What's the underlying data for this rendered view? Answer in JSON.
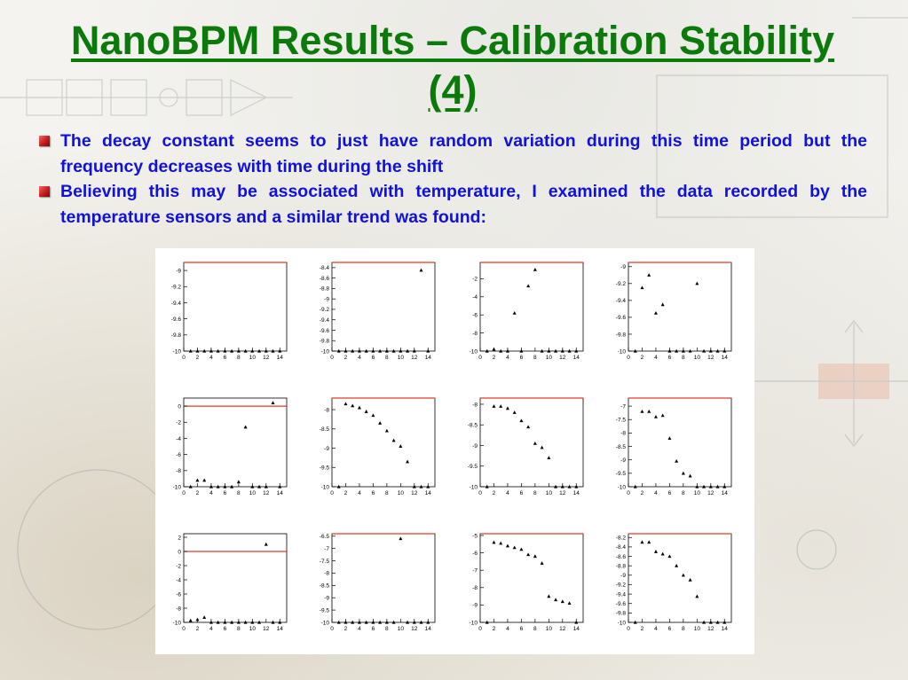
{
  "slide": {
    "title": "NanoBPM Results – Calibration Stability (4)",
    "bullets": [
      "The decay constant seems to just have random variation during this time period but the frequency decreases with time during the shift",
      "Believing this may be associated with temperature, I examined the data recorded by the temperature sensors and a similar trend was found:"
    ]
  },
  "colors": {
    "title": "#0b7a0b",
    "bullet_text": "#1111dd",
    "bullet_marker": "#c81c1c",
    "reference_line": "#e23a2a",
    "marker": "#000000"
  },
  "chart_data": [
    {
      "type": "scatter",
      "x": [
        1,
        2,
        3,
        4,
        5,
        6,
        7,
        8,
        9,
        10,
        11,
        12,
        13,
        14
      ],
      "y": [
        -10,
        -10,
        -10,
        -10,
        -10,
        -10,
        -10,
        -10,
        -10,
        -10,
        -10,
        -10,
        -10,
        -10
      ],
      "xlim": [
        0,
        15
      ],
      "ylim": [
        -10,
        -8.9
      ],
      "xticks": [
        0,
        2,
        4,
        6,
        8,
        10,
        12,
        14
      ],
      "yticks": [
        -9,
        -9.2,
        -9.4,
        -9.6,
        -9.8,
        -10
      ],
      "ref_line": -8.9
    },
    {
      "type": "scatter",
      "x": [
        1,
        2,
        3,
        4,
        5,
        6,
        7,
        8,
        9,
        10,
        11,
        12,
        13,
        14
      ],
      "y": [
        -10,
        -10,
        -10,
        -10,
        -10,
        -10,
        -10,
        -10,
        -10,
        -10,
        -10,
        -10,
        -8.45,
        -10
      ],
      "xlim": [
        0,
        15
      ],
      "ylim": [
        -10,
        -8.3
      ],
      "xticks": [
        0,
        2,
        4,
        6,
        8,
        10,
        12,
        14
      ],
      "yticks": [
        -8.4,
        -8.6,
        -8.8,
        -9,
        -9.2,
        -9.4,
        -9.6,
        -9.8,
        -10
      ],
      "ref_line": -8.3
    },
    {
      "type": "scatter",
      "x": [
        1,
        2,
        3,
        4,
        5,
        6,
        7,
        8,
        9,
        10,
        11,
        12,
        13,
        14
      ],
      "y": [
        -10,
        -9.8,
        -10,
        -10,
        -5.8,
        -10,
        -2.8,
        -1,
        -10,
        -10,
        -10,
        -10,
        -10,
        -10
      ],
      "xlim": [
        0,
        15
      ],
      "ylim": [
        -10,
        -0.2
      ],
      "xticks": [
        0,
        2,
        4,
        6,
        8,
        10,
        12,
        14
      ],
      "yticks": [
        -2,
        -4,
        -6,
        -8,
        -10
      ],
      "ref_line": -0.2
    },
    {
      "type": "scatter",
      "x": [
        1,
        2,
        3,
        4,
        5,
        6,
        7,
        8,
        9,
        10,
        11,
        12,
        13,
        14
      ],
      "y": [
        -10,
        -9.25,
        -9.1,
        -9.55,
        -9.45,
        -10,
        -10,
        -10,
        -10,
        -9.2,
        -10,
        -10,
        -10,
        -10
      ],
      "xlim": [
        0,
        15
      ],
      "ylim": [
        -10,
        -8.95
      ],
      "xticks": [
        0,
        2,
        4,
        6,
        8,
        10,
        12,
        14
      ],
      "yticks": [
        -9,
        -9.2,
        -9.4,
        -9.6,
        -9.8,
        -10
      ],
      "ref_line": -8.95
    },
    {
      "type": "scatter",
      "x": [
        1,
        2,
        3,
        4,
        5,
        6,
        7,
        8,
        9,
        10,
        11,
        12,
        13,
        14
      ],
      "y": [
        -10,
        -9.2,
        -9.2,
        -10,
        -10,
        -10,
        -10,
        -9.4,
        -2.6,
        -10,
        -10,
        -10,
        0.4,
        -10
      ],
      "xlim": [
        0,
        15
      ],
      "ylim": [
        -10,
        1
      ],
      "xticks": [
        0,
        2,
        4,
        6,
        8,
        10,
        12,
        14
      ],
      "yticks": [
        0,
        -2,
        -4,
        -6,
        -8,
        -10
      ],
      "ref_line": 0
    },
    {
      "type": "scatter",
      "x": [
        1,
        2,
        3,
        4,
        5,
        6,
        7,
        8,
        9,
        10,
        11,
        12,
        13,
        14
      ],
      "y": [
        -10,
        -7.85,
        -7.9,
        -7.95,
        -8.05,
        -8.15,
        -8.35,
        -8.55,
        -8.8,
        -8.95,
        -9.35,
        -10,
        -10,
        -10
      ],
      "xlim": [
        0,
        15
      ],
      "ylim": [
        -10,
        -7.7
      ],
      "xticks": [
        0,
        2,
        4,
        6,
        8,
        10,
        12,
        14
      ],
      "yticks": [
        -8,
        -8.5,
        -9,
        -9.5,
        -10
      ],
      "ref_line": -7.7
    },
    {
      "type": "scatter",
      "x": [
        1,
        2,
        3,
        4,
        5,
        6,
        7,
        8,
        9,
        10,
        11,
        12,
        13,
        14
      ],
      "y": [
        -10,
        -8.05,
        -8.05,
        -8.1,
        -8.2,
        -8.4,
        -8.55,
        -8.95,
        -9.05,
        -9.3,
        -10,
        -10,
        -10,
        -10
      ],
      "xlim": [
        0,
        15
      ],
      "ylim": [
        -10,
        -7.85
      ],
      "xticks": [
        0,
        2,
        4,
        6,
        8,
        10,
        12,
        14
      ],
      "yticks": [
        -8,
        -8.5,
        -9,
        -9.5,
        -10
      ],
      "ref_line": -7.85
    },
    {
      "type": "scatter",
      "x": [
        1,
        2,
        3,
        4,
        5,
        6,
        7,
        8,
        9,
        10,
        11,
        12,
        13,
        14
      ],
      "y": [
        -10,
        -7.2,
        -7.2,
        -7.4,
        -7.35,
        -8.2,
        -9.05,
        -9.5,
        -9.6,
        -10,
        -10,
        -10,
        -10,
        -10
      ],
      "xlim": [
        0,
        15
      ],
      "ylim": [
        -10,
        -6.7
      ],
      "xticks": [
        0,
        2,
        4,
        6,
        8,
        10,
        12,
        14
      ],
      "yticks": [
        -7,
        -7.5,
        -8,
        -8.5,
        -9,
        -9.5,
        -10
      ],
      "ref_line": -6.7
    },
    {
      "type": "scatter",
      "x": [
        1,
        2,
        3,
        4,
        5,
        6,
        7,
        8,
        9,
        10,
        11,
        12,
        13,
        14
      ],
      "y": [
        -9.75,
        -9.6,
        -9.3,
        -10,
        -10,
        -10,
        -10,
        -10,
        -10,
        -10,
        -10,
        1,
        -10,
        -10
      ],
      "xlim": [
        0,
        15
      ],
      "ylim": [
        -10,
        2.5
      ],
      "xticks": [
        0,
        2,
        4,
        6,
        8,
        10,
        12,
        14
      ],
      "yticks": [
        2,
        0,
        -2,
        -4,
        -6,
        -8,
        -10
      ],
      "ref_line": 0
    },
    {
      "type": "scatter",
      "x": [
        1,
        2,
        3,
        4,
        5,
        6,
        7,
        8,
        9,
        10,
        11,
        12,
        13,
        14
      ],
      "y": [
        -10,
        -10,
        -10,
        -10,
        -10,
        -10,
        -10,
        -10,
        -10,
        -6.6,
        -10,
        -10,
        -10,
        -10
      ],
      "xlim": [
        0,
        15
      ],
      "ylim": [
        -10,
        -6.4
      ],
      "xticks": [
        0,
        2,
        4,
        6,
        8,
        10,
        12,
        14
      ],
      "yticks": [
        -6.5,
        -7,
        -7.5,
        -8,
        -8.5,
        -9,
        -9.5,
        -10
      ],
      "ref_line": -6.4
    },
    {
      "type": "scatter",
      "x": [
        1,
        2,
        3,
        4,
        5,
        6,
        7,
        8,
        9,
        10,
        11,
        12,
        13,
        14
      ],
      "y": [
        -10,
        -5.4,
        -5.45,
        -5.6,
        -5.7,
        -5.8,
        -6.1,
        -6.2,
        -6.6,
        -8.5,
        -8.7,
        -8.8,
        -8.9,
        -10
      ],
      "xlim": [
        0,
        15
      ],
      "ylim": [
        -10,
        -4.9
      ],
      "xticks": [
        0,
        2,
        4,
        6,
        8,
        10,
        12,
        14
      ],
      "yticks": [
        -5,
        -6,
        -7,
        -8,
        -9,
        -10
      ],
      "ref_line": -4.9
    },
    {
      "type": "scatter",
      "x": [
        1,
        2,
        3,
        4,
        5,
        6,
        7,
        8,
        9,
        10,
        11,
        12,
        13,
        14
      ],
      "y": [
        -10,
        -8.3,
        -8.3,
        -8.5,
        -8.55,
        -8.6,
        -8.8,
        -9,
        -9.1,
        -9.45,
        -10,
        -10,
        -10,
        -10
      ],
      "xlim": [
        0,
        15
      ],
      "ylim": [
        -10,
        -8.12
      ],
      "xticks": [
        0,
        2,
        4,
        6,
        8,
        10,
        12,
        14
      ],
      "yticks": [
        -8.2,
        -8.4,
        -8.6,
        -8.8,
        -9,
        -9.2,
        -9.4,
        -9.6,
        -9.8,
        -10
      ],
      "ref_line": -8.12
    }
  ]
}
